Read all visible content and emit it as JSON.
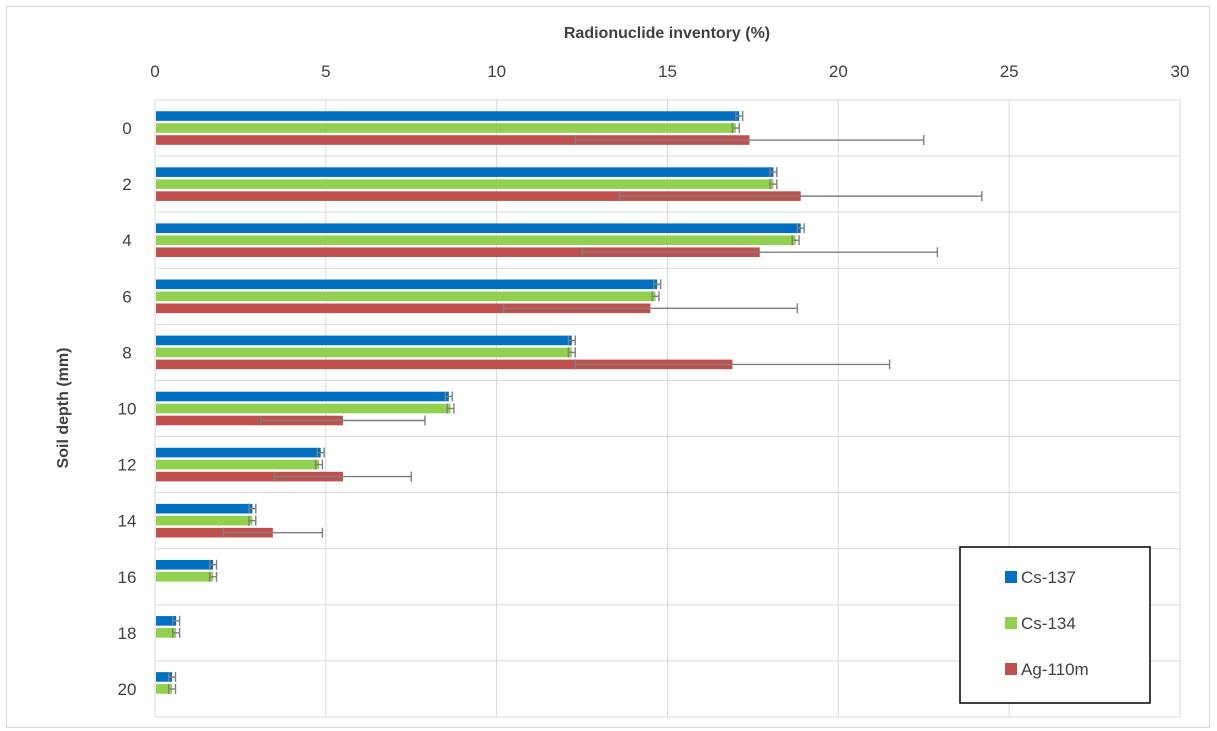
{
  "chart_data": {
    "type": "bar",
    "orientation": "horizontal",
    "x_axis_position": "top",
    "y_axis_reversed": true,
    "xlabel": "Radionuclide inventory (%)",
    "ylabel": "Soil depth (mm)",
    "xlim": [
      0,
      30
    ],
    "xticks": [
      0,
      5,
      10,
      15,
      20,
      25,
      30
    ],
    "grid": true,
    "categories": [
      "0",
      "2",
      "4",
      "6",
      "8",
      "10",
      "12",
      "14",
      "16",
      "18",
      "20"
    ],
    "series": [
      {
        "name": "Cs-137",
        "color": "#0070C0",
        "values": [
          17.1,
          18.1,
          18.9,
          14.7,
          12.2,
          8.6,
          4.85,
          2.85,
          1.7,
          0.62,
          0.5
        ],
        "error": [
          0.1,
          0.1,
          0.1,
          0.1,
          0.1,
          0.1,
          0.1,
          0.1,
          0.1,
          0.1,
          0.1
        ]
      },
      {
        "name": "Cs-134",
        "color": "#92D050",
        "values": [
          17.0,
          18.1,
          18.75,
          14.65,
          12.2,
          8.65,
          4.8,
          2.85,
          1.7,
          0.62,
          0.5
        ],
        "error": [
          0.1,
          0.1,
          0.1,
          0.1,
          0.1,
          0.1,
          0.1,
          0.1,
          0.1,
          0.1,
          0.1
        ]
      },
      {
        "name": "Ag-110m",
        "color": "#C0504D",
        "values": [
          17.4,
          18.9,
          17.7,
          14.5,
          16.9,
          5.5,
          5.5,
          3.45,
          null,
          null,
          null
        ],
        "error": [
          5.1,
          5.3,
          5.2,
          4.3,
          4.6,
          2.4,
          2.0,
          1.45,
          null,
          null,
          null
        ]
      }
    ],
    "legend": {
      "placement": "bottom-right",
      "bordered": true
    }
  }
}
